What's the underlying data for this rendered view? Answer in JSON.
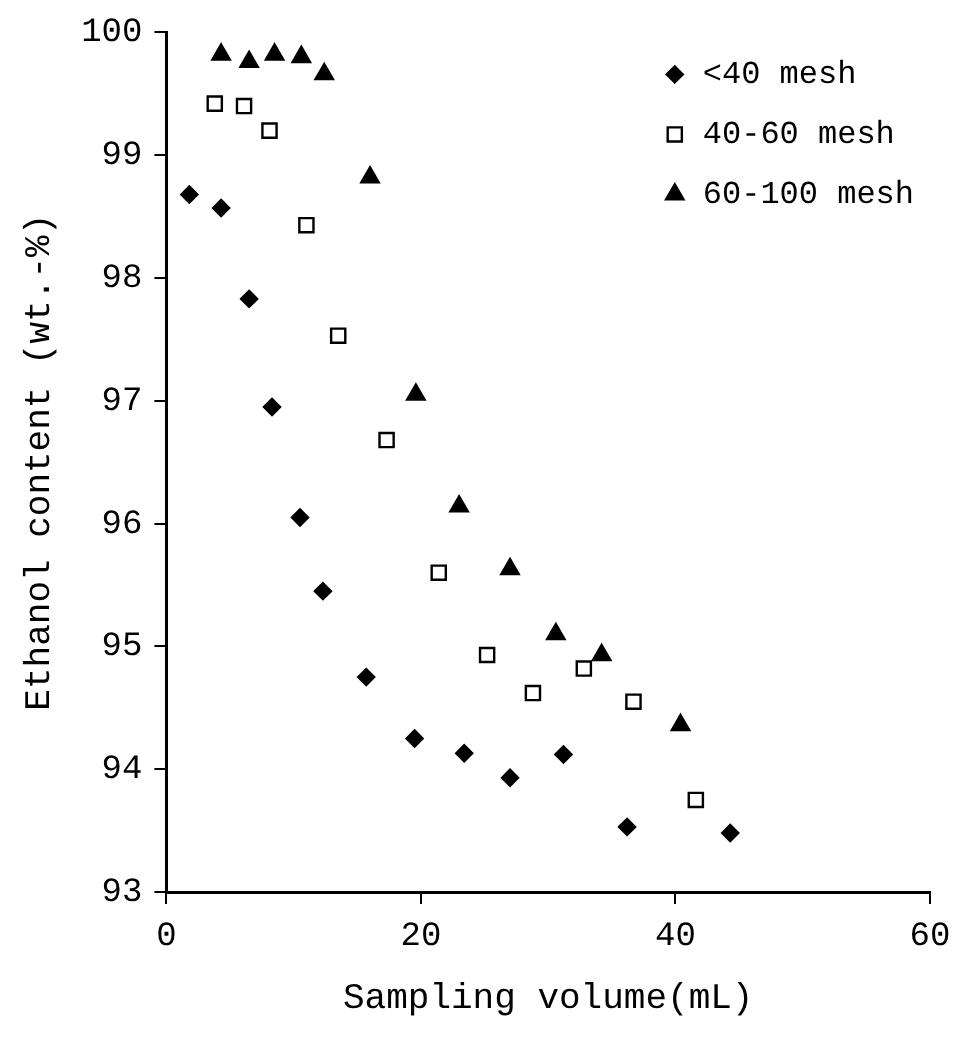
{
  "chart_data": {
    "type": "scatter",
    "xlabel": "Sampling volume(mL)",
    "ylabel": "Ethanol content (wt.-%)",
    "xlim": [
      0,
      60
    ],
    "xticks": [
      0,
      20,
      40,
      60
    ],
    "ylim": [
      93,
      100
    ],
    "yticks": [
      93,
      94,
      95,
      96,
      97,
      98,
      99,
      100
    ],
    "grid": false,
    "legend": "top right",
    "series": [
      {
        "name": "<40 mesh",
        "color": "#000000",
        "marker": "diamond",
        "x": [
          1.8,
          4.3,
          6.5,
          8.3,
          10.5,
          12.3,
          15.7,
          19.5,
          23.4,
          27,
          31.2,
          36.2,
          44.3
        ],
        "values": [
          98.68,
          98.57,
          97.83,
          96.95,
          96.05,
          95.45,
          94.75,
          94.25,
          94.13,
          93.93,
          94.12,
          93.53,
          93.48
        ]
      },
      {
        "name": "40-60 mesh",
        "color": "#000000",
        "marker": "square",
        "x": [
          3.8,
          6.1,
          8.1,
          11,
          13.5,
          17.3,
          21.4,
          25.2,
          28.8,
          32.8,
          36.7,
          41.6
        ],
        "values": [
          99.42,
          99.4,
          99.2,
          98.43,
          97.53,
          96.68,
          95.6,
          94.93,
          94.62,
          94.82,
          94.55,
          93.75
        ]
      },
      {
        "name": "60-100 mesh",
        "color": "#000000",
        "marker": "triangle",
        "x": [
          4.3,
          6.5,
          8.5,
          10.6,
          12.4,
          16,
          19.6,
          23,
          27,
          30.6,
          34.2,
          40.4
        ],
        "values": [
          99.82,
          99.76,
          99.82,
          99.8,
          99.66,
          98.82,
          97.05,
          96.14,
          95.63,
          95.1,
          94.93,
          94.36
        ]
      }
    ]
  }
}
